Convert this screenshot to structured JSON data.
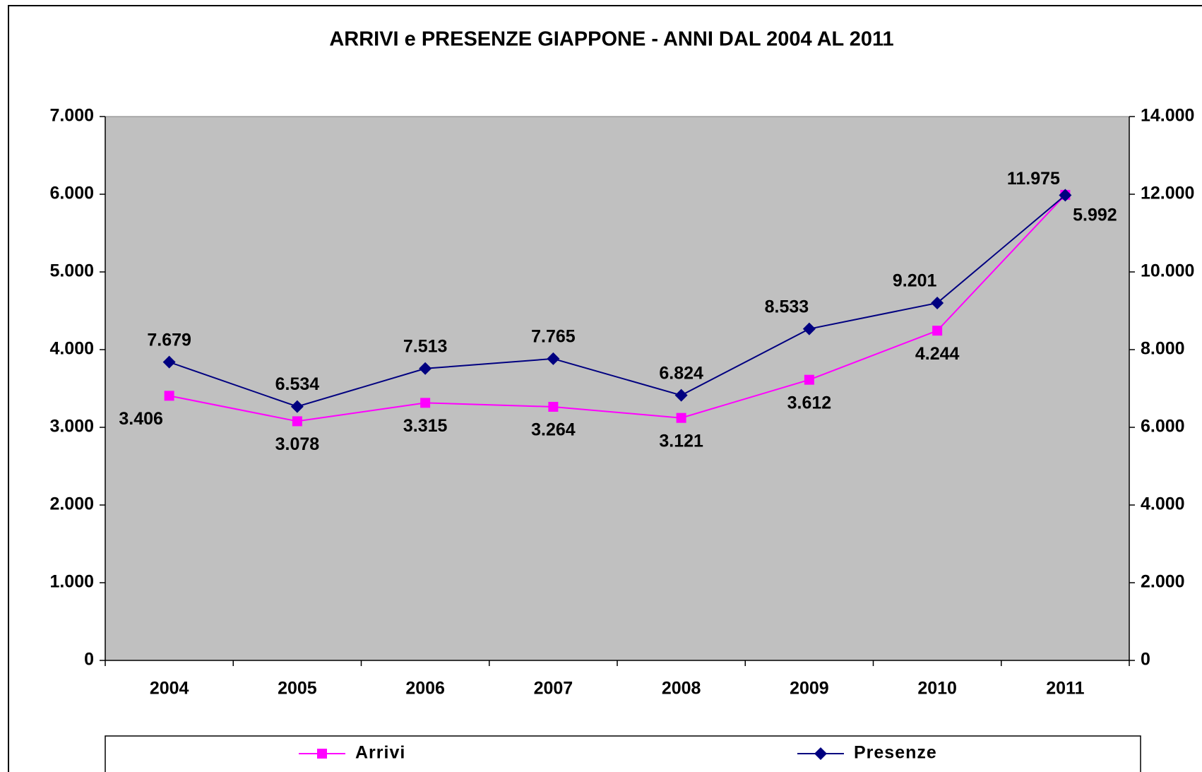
{
  "chart_data": {
    "type": "line",
    "title": "ARRIVI e PRESENZE GIAPPONE - ANNI DAL 2004 AL 2011",
    "categories": [
      "2004",
      "2005",
      "2006",
      "2007",
      "2008",
      "2009",
      "2010",
      "2011"
    ],
    "series": [
      {
        "name": "Arrivi",
        "color": "#ff00ff",
        "marker": "square",
        "axis": "y",
        "values": [
          3406,
          3078,
          3315,
          3264,
          3121,
          3612,
          4244,
          5992
        ],
        "value_labels": [
          "3.406",
          "3.078",
          "3.315",
          "3.264",
          "3.121",
          "3.612",
          "4.244",
          "5.992"
        ]
      },
      {
        "name": "Presenze",
        "color": "#000080",
        "marker": "diamond",
        "axis": "y2",
        "values": [
          7679,
          6534,
          7513,
          7765,
          6824,
          8533,
          9201,
          11975
        ],
        "value_labels": [
          "7.679",
          "6.534",
          "7.513",
          "7.765",
          "6.824",
          "8.533",
          "9.201",
          "11.975"
        ]
      }
    ],
    "ylim": [
      0,
      7000
    ],
    "yticks": [
      0,
      {
        "value": 1000,
        "label": "1.000"
      },
      {
        "value": 2000,
        "label": "2.000"
      },
      {
        "value": 3000,
        "label": "3.000"
      },
      {
        "value": 4000,
        "label": "4.000"
      },
      {
        "value": 5000,
        "label": "5.000"
      },
      {
        "value": 6000,
        "label": "6.000"
      },
      {
        "value": 7000,
        "label": "7.000"
      }
    ],
    "y2lim": [
      0,
      14000
    ],
    "y2ticks": [
      0,
      {
        "value": 2000,
        "label": "2.000"
      },
      {
        "value": 4000,
        "label": "4.000"
      },
      {
        "value": 6000,
        "label": "6.000"
      },
      {
        "value": 8000,
        "label": "8.000"
      },
      {
        "value": 10000,
        "label": "10.000"
      },
      {
        "value": 12000,
        "label": "12.000"
      },
      {
        "value": 14000,
        "label": "14.000"
      }
    ],
    "plot_background": "#c0c0c0",
    "legend": "bottom"
  }
}
